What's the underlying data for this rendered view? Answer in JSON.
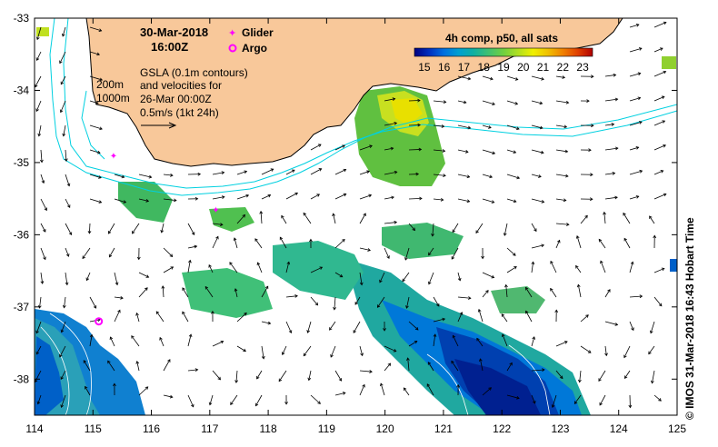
{
  "title": {
    "date": "30-Mar-2018",
    "time": "16:00Z"
  },
  "legend": {
    "glider": "Glider",
    "argo": "Argo",
    "glider_color": "#ff00ff",
    "argo_color": "#ff00ff"
  },
  "gsla_note": {
    "line1": "GSLA (0.1m contours)",
    "line2": "and velocities for",
    "line3": "26-Mar 00:00Z",
    "line4": "0.5m/s (1kt 24h)"
  },
  "isobaths": {
    "shallow": "200m",
    "deep": "1000m",
    "color": "#00d0e0"
  },
  "colorbar": {
    "title": "4h comp, p50, all sats",
    "ticks": [
      "15",
      "16",
      "17",
      "18",
      "19",
      "20",
      "21",
      "22",
      "23"
    ],
    "min": 14.5,
    "max": 23.5,
    "stops": [
      "#000080",
      "#0030c0",
      "#0070e0",
      "#00a0d0",
      "#10b0a0",
      "#40c070",
      "#70d040",
      "#b0e020",
      "#f0f000",
      "#f0c000",
      "#f08000",
      "#e04000",
      "#b00000"
    ]
  },
  "axes": {
    "x_ticks": [
      "114",
      "115",
      "116",
      "117",
      "118",
      "119",
      "120",
      "121",
      "122",
      "123",
      "124",
      "125"
    ],
    "y_ticks": [
      "-33",
      "-34",
      "-35",
      "-36",
      "-37",
      "-38"
    ],
    "lon_range": [
      114,
      125
    ],
    "lat_range": [
      -38.5,
      -33
    ]
  },
  "credit": "© IMOS 31-Mar-2018 16:43 Hobart Time",
  "colors": {
    "land": "#f8c89a",
    "coast": "#000000"
  },
  "argo_float": {
    "lon": 115.1,
    "lat": -37.2
  },
  "glider_positions": [
    {
      "lon": 115.35,
      "lat": -34.9
    },
    {
      "lon": 117.1,
      "lat": -35.65
    }
  ]
}
